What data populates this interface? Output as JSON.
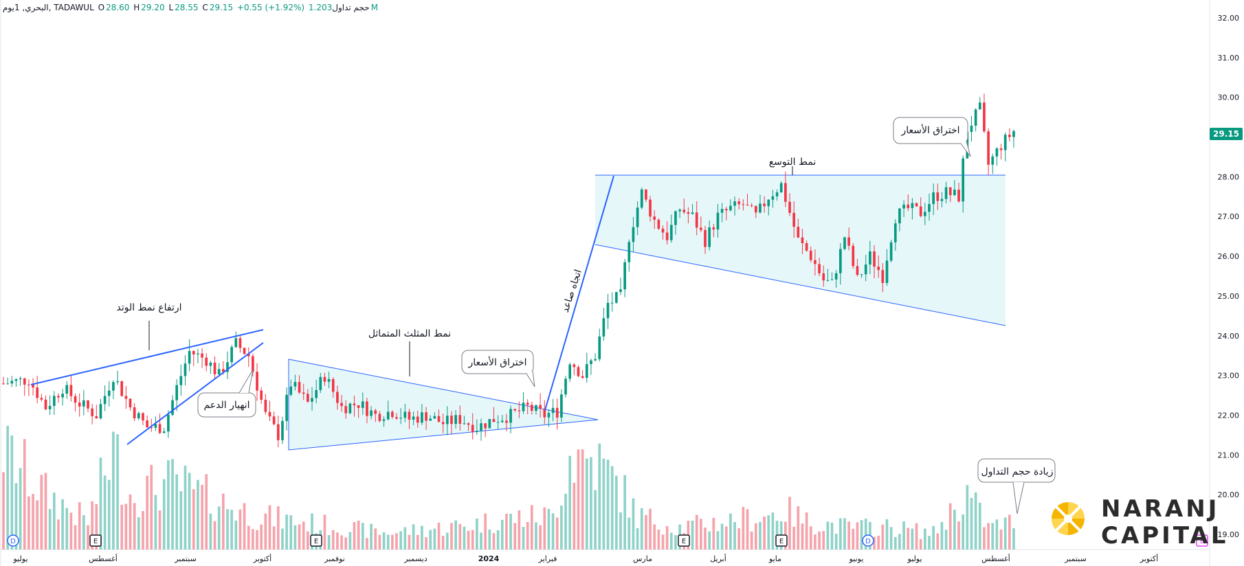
{
  "header": {
    "symbol": "البحري, 1يوم, TADAWUL",
    "open_label": "O",
    "open": "28.60",
    "high_label": "H",
    "high": "29.20",
    "low_label": "L",
    "low": "28.55",
    "close_label": "C",
    "close": "29.15",
    "change": "+0.55 (+1.92%)",
    "volume_label": "حجم تداول",
    "volume": "1.203M"
  },
  "last_price_tag": "29.15",
  "colors": {
    "up": "#089981",
    "down": "#f23645",
    "up_vol": "#8fd2c8",
    "down_vol": "#f5a3ab",
    "trend": "#2962ff",
    "fill": "#e6f7fa"
  },
  "logo": {
    "line1": "NARANJ",
    "line2": "CAPITAL"
  },
  "chart_data": {
    "type": "candlestick",
    "y_ticks": [
      "32.00",
      "31.00",
      "30.00",
      "29.00",
      "28.00",
      "27.00",
      "26.00",
      "25.00",
      "24.00",
      "23.00",
      "22.00",
      "21.00",
      "20.00",
      "19.00"
    ],
    "ylim": [
      18.7,
      32.4
    ],
    "x_ticks": [
      "يوليو",
      "أغسطس",
      "سبتمبر",
      "أكتوبر",
      "نوفمبر",
      "ديسمبر",
      "2024",
      "فبراير",
      "مارس",
      "أبريل",
      "مايو",
      "يونيو",
      "يوليو",
      "أغسطس",
      "سبتمبر",
      "أكتوبر"
    ],
    "event_markers": [
      "D",
      "E",
      "E",
      "E",
      "E",
      "D",
      "E"
    ],
    "annotations": [
      "ارتفاع نمط الوتد",
      "انهيار الدعم",
      "نمط المثلث المتماثل",
      "اختراق الأسعار",
      "اتجاه صاعد",
      "نمط التوسع",
      "اختراق الأسعار",
      "زيادة حجم التداول"
    ],
    "price_path": [
      [
        0,
        22.8
      ],
      [
        6,
        22.9
      ],
      [
        10,
        22.2
      ],
      [
        14,
        22.7
      ],
      [
        18,
        22.3
      ],
      [
        22,
        22.0
      ],
      [
        26,
        23.0
      ],
      [
        30,
        22.2
      ],
      [
        34,
        21.7
      ],
      [
        38,
        21.7
      ],
      [
        41,
        22.7
      ],
      [
        44,
        23.6
      ],
      [
        48,
        23.4
      ],
      [
        51,
        23.0
      ],
      [
        55,
        23.8
      ],
      [
        58,
        23.5
      ],
      [
        62,
        22.0
      ],
      [
        65,
        21.5
      ],
      [
        68,
        22.8
      ],
      [
        72,
        22.3
      ],
      [
        76,
        23.0
      ],
      [
        80,
        22.2
      ],
      [
        84,
        22.3
      ],
      [
        88,
        22.0
      ],
      [
        92,
        22.1
      ],
      [
        96,
        21.9
      ],
      [
        100,
        22.0
      ],
      [
        104,
        21.8
      ],
      [
        108,
        21.9
      ],
      [
        112,
        21.7
      ],
      [
        116,
        21.9
      ],
      [
        120,
        22.0
      ],
      [
        124,
        22.2
      ],
      [
        128,
        22.0
      ],
      [
        131,
        22.1
      ],
      [
        134,
        23.4
      ],
      [
        137,
        23.0
      ],
      [
        140,
        23.5
      ],
      [
        143,
        24.8
      ],
      [
        146,
        25.0
      ],
      [
        148,
        26.5
      ],
      [
        151,
        27.6
      ],
      [
        154,
        26.9
      ],
      [
        157,
        26.5
      ],
      [
        160,
        27.2
      ],
      [
        163,
        27.0
      ],
      [
        166,
        26.4
      ],
      [
        169,
        27.0
      ],
      [
        172,
        27.2
      ],
      [
        175,
        27.3
      ],
      [
        178,
        27.0
      ],
      [
        181,
        27.5
      ],
      [
        184,
        27.8
      ],
      [
        186,
        27.1
      ],
      [
        188,
        26.4
      ],
      [
        191,
        26.0
      ],
      [
        194,
        25.4
      ],
      [
        196,
        25.3
      ],
      [
        199,
        26.5
      ],
      [
        202,
        25.4
      ],
      [
        205,
        26.0
      ],
      [
        208,
        25.5
      ],
      [
        211,
        27.0
      ],
      [
        214,
        27.2
      ],
      [
        217,
        27.1
      ],
      [
        220,
        27.5
      ],
      [
        223,
        27.6
      ],
      [
        226,
        27.5
      ],
      [
        228,
        29.2
      ],
      [
        231,
        29.7
      ],
      [
        233,
        28.3
      ],
      [
        236,
        28.8
      ],
      [
        239,
        29.15
      ]
    ],
    "volume_path": [
      [
        0,
        0.9
      ],
      [
        10,
        0.5
      ],
      [
        20,
        0.25
      ],
      [
        26,
        0.9
      ],
      [
        30,
        0.5
      ],
      [
        40,
        0.6
      ],
      [
        46,
        0.5
      ],
      [
        60,
        0.3
      ],
      [
        70,
        0.25
      ],
      [
        80,
        0.2
      ],
      [
        90,
        0.15
      ],
      [
        100,
        0.18
      ],
      [
        110,
        0.22
      ],
      [
        120,
        0.28
      ],
      [
        130,
        0.3
      ],
      [
        134,
        0.85
      ],
      [
        140,
        0.8
      ],
      [
        146,
        0.55
      ],
      [
        150,
        0.3
      ],
      [
        160,
        0.2
      ],
      [
        170,
        0.25
      ],
      [
        180,
        0.3
      ],
      [
        185,
        0.35
      ],
      [
        190,
        0.25
      ],
      [
        200,
        0.2
      ],
      [
        210,
        0.2
      ],
      [
        220,
        0.15
      ],
      [
        228,
        0.5
      ],
      [
        233,
        0.2
      ],
      [
        239,
        0.25
      ]
    ],
    "n_bars": 240
  }
}
